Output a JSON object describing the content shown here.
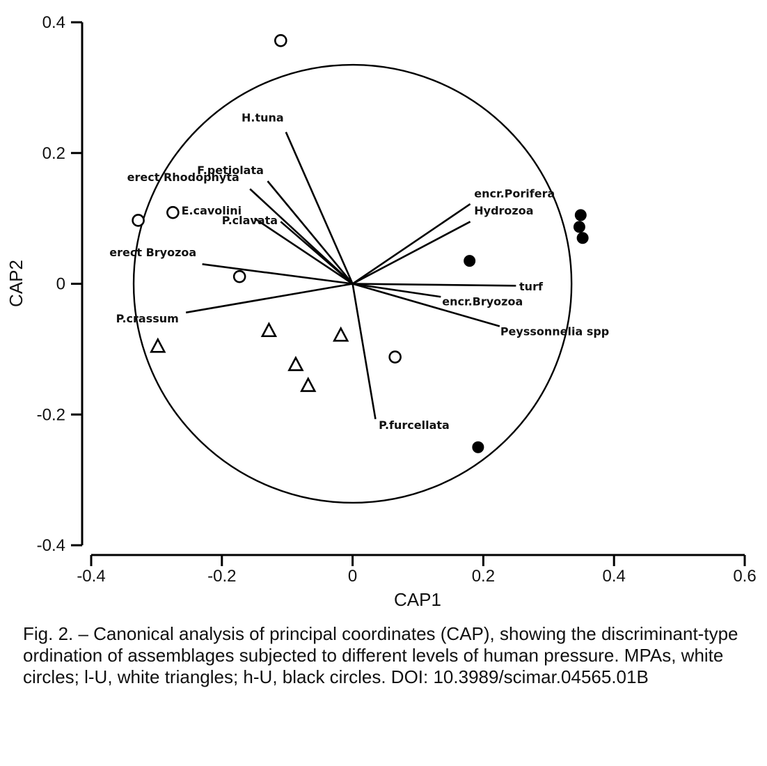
{
  "chart_data": {
    "type": "scatter",
    "xlabel": "CAP1",
    "ylabel": "CAP2",
    "xlim": [
      -0.4,
      0.6
    ],
    "ylim": [
      -0.4,
      0.4
    ],
    "x_ticks": [
      "-0.4",
      "-0.2",
      "0",
      "0.2",
      "0.4",
      "0.6"
    ],
    "y_ticks": [
      "0.4",
      "0.2",
      "0",
      "-0.2",
      "-0.4"
    ],
    "grid": false,
    "reference_circle": {
      "center": [
        0,
        0
      ],
      "radius": 0.335
    },
    "series": [
      {
        "marker": "white-circle",
        "points": [
          [
            -0.11,
            0.372
          ],
          [
            -0.328,
            0.097
          ],
          [
            -0.275,
            0.109
          ],
          [
            -0.173,
            0.011
          ],
          [
            0.065,
            -0.112
          ]
        ]
      },
      {
        "marker": "white-triangle",
        "points": [
          [
            -0.298,
            -0.096
          ],
          [
            -0.128,
            -0.072
          ],
          [
            -0.087,
            -0.124
          ],
          [
            -0.068,
            -0.156
          ],
          [
            -0.018,
            -0.079
          ]
        ]
      },
      {
        "marker": "black-circle",
        "points": [
          [
            0.179,
            0.035
          ],
          [
            0.349,
            0.105
          ],
          [
            0.347,
            0.087
          ],
          [
            0.352,
            0.07
          ],
          [
            0.192,
            -0.25
          ]
        ]
      }
    ],
    "vectors": [
      {
        "label": "H.tuna",
        "x": -0.102,
        "y": 0.232,
        "lx": -0.17,
        "ly": 0.248
      },
      {
        "label": "F.petiolata",
        "x": -0.13,
        "y": 0.157,
        "lx": -0.238,
        "ly": 0.168
      },
      {
        "label": "erect Rhodophyta",
        "x": -0.157,
        "y": 0.145,
        "lx": -0.345,
        "ly": 0.157
      },
      {
        "label": "E.cavolini",
        "x": -0.11,
        "y": 0.095,
        "lx": -0.262,
        "ly": 0.106
      },
      {
        "label": "P.clavata",
        "x": -0.15,
        "y": 0.1,
        "lx": -0.2,
        "ly": 0.091
      },
      {
        "label": "erect Bryozoa",
        "x": -0.23,
        "y": 0.03,
        "lx": -0.372,
        "ly": 0.042
      },
      {
        "label": "P.crassum",
        "x": -0.255,
        "y": -0.044,
        "lx": -0.362,
        "ly": -0.059
      },
      {
        "label": "encr.Porifera",
        "x": 0.18,
        "y": 0.122,
        "lx": 0.186,
        "ly": 0.132
      },
      {
        "label": "Hydrozoa",
        "x": 0.18,
        "y": 0.095,
        "lx": 0.186,
        "ly": 0.106
      },
      {
        "label": "turf",
        "x": 0.25,
        "y": -0.003,
        "lx": 0.255,
        "ly": -0.01
      },
      {
        "label": "encr.Bryozoa",
        "x": 0.135,
        "y": -0.02,
        "lx": 0.137,
        "ly": -0.033
      },
      {
        "label": "Peyssonnelia spp",
        "x": 0.225,
        "y": -0.065,
        "lx": 0.226,
        "ly": -0.079
      },
      {
        "label": "P.furcellata",
        "x": 0.035,
        "y": -0.207,
        "lx": 0.04,
        "ly": -0.222
      }
    ]
  },
  "caption": "Fig. 2. – Canonical analysis of principal coordinates (CAP), showing the discriminant-type ordination of assemblages subjected to different levels of human pressure. MPAs, white circles; l-U, white triangles; h-U, black circles. DOI: 10.3989/scimar.04565.01B"
}
